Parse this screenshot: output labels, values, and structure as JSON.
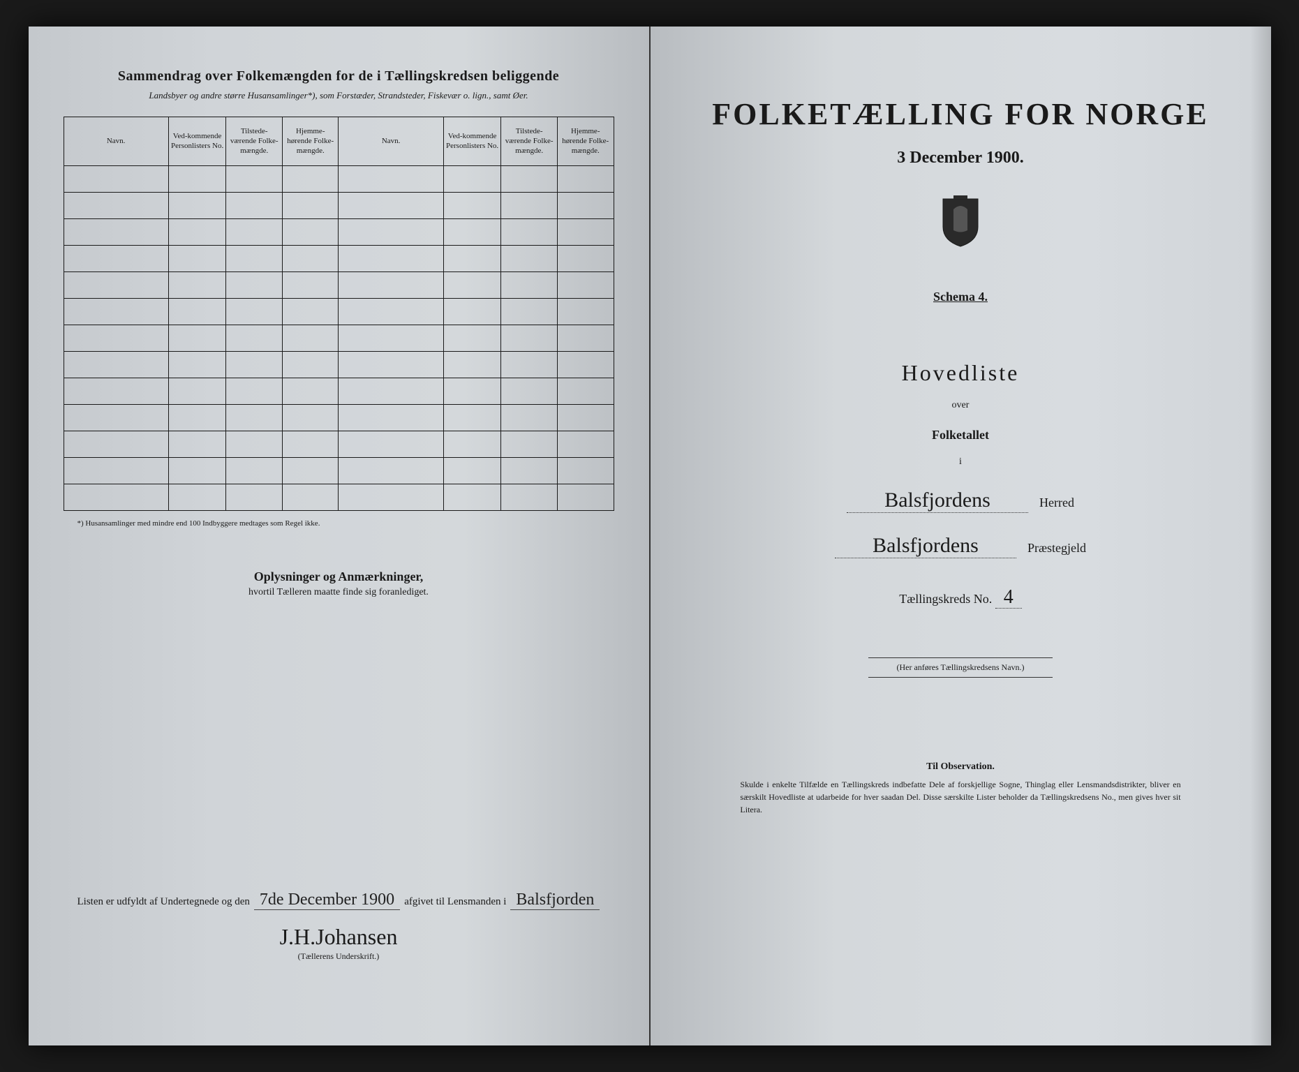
{
  "left": {
    "header_title": "Sammendrag over Folkemængden for de i Tællingskredsen beliggende",
    "header_subtitle": "Landsbyer og andre større Husansamlinger*), som Forstæder, Strandsteder, Fiskevær o. lign., samt Øer.",
    "table": {
      "columns": [
        "Navn.",
        "Ved-kommende Personlisters No.",
        "Tilstede-værende Folke-mængde.",
        "Hjemme-hørende Folke-mængde.",
        "Navn.",
        "Ved-kommende Personlisters No.",
        "Tilstede-værende Folke-mængde.",
        "Hjemme-hørende Folke-mængde."
      ],
      "row_count": 13
    },
    "footnote": "*) Husansamlinger med mindre end 100 Indbyggere medtages som Regel ikke.",
    "remarks_title": "Oplysninger og Anmærkninger,",
    "remarks_sub": "hvortil Tælleren maatte finde sig foranlediget.",
    "sign_prefix": "Listen er udfyldt af Undertegnede og den",
    "sign_date": "7de December 1900",
    "sign_mid": "afgivet til Lensmanden i",
    "sign_place": "Balsfjorden",
    "signature": "J.H.Johansen",
    "sig_label": "(Tællerens Underskrift.)"
  },
  "right": {
    "title": "FOLKETÆLLING FOR NORGE",
    "date": "3 December 1900.",
    "schema": "Schema 4.",
    "hovedliste": "Hovedliste",
    "over": "over",
    "folketallet": "Folketallet",
    "i": "i",
    "herred_value": "Balsfjordens",
    "herred_label": "Herred",
    "praestegjeld_value": "Balsfjordens",
    "praestegjeld_label": "Præstegjeld",
    "tk_label": "Tællingskreds No.",
    "tk_value": "4",
    "navn_note": "(Her anføres Tællingskredsens Navn.)",
    "obs_title": "Til Observation.",
    "obs_text": "Skulde i enkelte Tilfælde en Tællingskreds indbefatte Dele af forskjellige Sogne, Thinglag eller Lensmandsdistrikter, bliver en særskilt Hovedliste at udarbeide for hver saadan Del. Disse særskilte Lister beholder da Tællingskredsens No., men gives hver sit Litera."
  },
  "style": {
    "paper_color": "#d4d8db",
    "ink_color": "#1a1a1a",
    "handwriting_color": "#222222"
  }
}
